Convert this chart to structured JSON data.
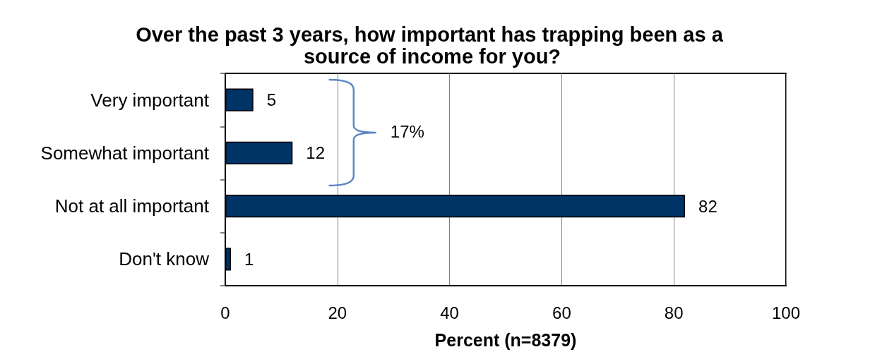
{
  "chart_data": {
    "type": "bar",
    "orientation": "horizontal",
    "title": "Over the past 3 years, how important has trapping been as a source of income for you?",
    "xlabel": "Percent (n=8379)",
    "categories": [
      "Very important",
      "Somewhat important",
      "Not at all important",
      "Don't know"
    ],
    "values": [
      5,
      12,
      82,
      1
    ],
    "color": "#003366",
    "xlim": [
      0,
      100
    ],
    "xticks": [
      0,
      20,
      40,
      60,
      80,
      100
    ],
    "grid": "x",
    "data_labels": true,
    "annotations": [
      "17%"
    ]
  }
}
